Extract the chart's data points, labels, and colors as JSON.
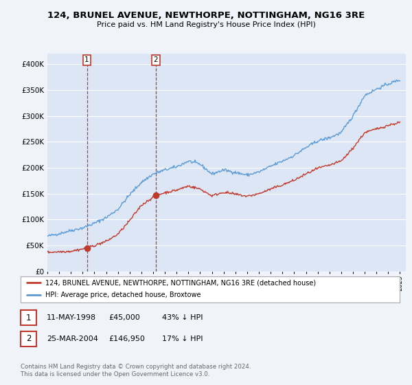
{
  "title": "124, BRUNEL AVENUE, NEWTHORPE, NOTTINGHAM, NG16 3RE",
  "subtitle": "Price paid vs. HM Land Registry's House Price Index (HPI)",
  "legend_line1": "124, BRUNEL AVENUE, NEWTHORPE, NOTTINGHAM, NG16 3RE (detached house)",
  "legend_line2": "HPI: Average price, detached house, Broxtowe",
  "annotation1_date": "11-MAY-1998",
  "annotation1_price": "£45,000",
  "annotation1_hpi": "43% ↓ HPI",
  "annotation2_date": "25-MAR-2004",
  "annotation2_price": "£146,950",
  "annotation2_hpi": "17% ↓ HPI",
  "footer": "Contains HM Land Registry data © Crown copyright and database right 2024.\nThis data is licensed under the Open Government Licence v3.0.",
  "red_color": "#c0392b",
  "blue_color": "#5b9bd5",
  "background_color": "#f0f4fa",
  "plot_bg": "#dce6f5",
  "ylim": [
    0,
    420000
  ],
  "xlim_start": 1995,
  "xlim_end": 2025.5,
  "sale1_year": 1998.36,
  "sale1_price": 45000,
  "sale2_year": 2004.23,
  "sale2_price": 146950,
  "hpi_anchors": [
    [
      1995.0,
      68000
    ],
    [
      1996.0,
      73000
    ],
    [
      1997.0,
      79000
    ],
    [
      1998.0,
      84000
    ],
    [
      1999.0,
      93000
    ],
    [
      2000.0,
      104000
    ],
    [
      2001.0,
      120000
    ],
    [
      2002.0,
      148000
    ],
    [
      2003.0,
      172000
    ],
    [
      2004.0,
      188000
    ],
    [
      2005.0,
      196000
    ],
    [
      2006.0,
      202000
    ],
    [
      2007.0,
      213000
    ],
    [
      2008.0,
      207000
    ],
    [
      2009.0,
      188000
    ],
    [
      2010.0,
      196000
    ],
    [
      2011.0,
      191000
    ],
    [
      2012.0,
      186000
    ],
    [
      2013.0,
      192000
    ],
    [
      2014.0,
      203000
    ],
    [
      2015.0,
      213000
    ],
    [
      2016.0,
      224000
    ],
    [
      2017.0,
      239000
    ],
    [
      2018.0,
      252000
    ],
    [
      2019.0,
      258000
    ],
    [
      2020.0,
      268000
    ],
    [
      2021.0,
      300000
    ],
    [
      2022.0,
      340000
    ],
    [
      2023.0,
      352000
    ],
    [
      2024.0,
      362000
    ],
    [
      2025.0,
      370000
    ]
  ],
  "red_anchors": [
    [
      1995.0,
      37000
    ],
    [
      1997.0,
      39000
    ],
    [
      1998.36,
      45000
    ],
    [
      1999.0,
      50000
    ],
    [
      2000.0,
      58000
    ],
    [
      2001.0,
      72000
    ],
    [
      2002.0,
      98000
    ],
    [
      2003.0,
      128000
    ],
    [
      2004.23,
      146950
    ],
    [
      2005.0,
      152000
    ],
    [
      2006.0,
      157000
    ],
    [
      2007.0,
      165000
    ],
    [
      2008.0,
      159000
    ],
    [
      2009.0,
      146000
    ],
    [
      2010.0,
      153000
    ],
    [
      2011.0,
      149000
    ],
    [
      2012.0,
      145000
    ],
    [
      2013.0,
      150000
    ],
    [
      2014.0,
      159000
    ],
    [
      2015.0,
      167000
    ],
    [
      2016.0,
      176000
    ],
    [
      2017.0,
      188000
    ],
    [
      2018.0,
      199000
    ],
    [
      2019.0,
      205000
    ],
    [
      2020.0,
      213000
    ],
    [
      2021.0,
      238000
    ],
    [
      2022.0,
      268000
    ],
    [
      2023.0,
      275000
    ],
    [
      2024.0,
      282000
    ],
    [
      2025.0,
      288000
    ]
  ]
}
